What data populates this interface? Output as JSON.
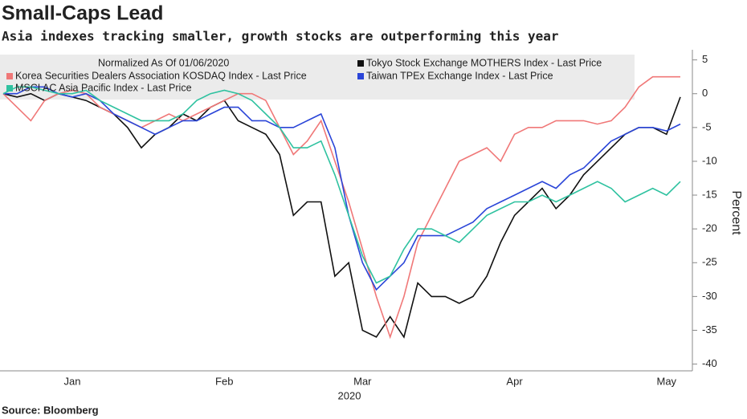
{
  "chart_data": {
    "type": "line",
    "title": "Small-Caps Lead",
    "subtitle": "Asia indexes tracking smaller, growth stocks are outperforming this year",
    "legend_title": "Normalized As Of 01/06/2020",
    "y_label": "Percent",
    "x_label": "2020",
    "source": "Source: Bloomberg",
    "categories": [
      null,
      null,
      null,
      null,
      null,
      "Jan",
      null,
      null,
      null,
      null,
      null,
      null,
      null,
      null,
      null,
      null,
      "Feb",
      null,
      null,
      null,
      null,
      null,
      null,
      null,
      null,
      null,
      "Mar",
      null,
      null,
      null,
      null,
      null,
      null,
      null,
      null,
      null,
      null,
      "Apr",
      null,
      null,
      null,
      null,
      null,
      null,
      null,
      null,
      null,
      null,
      "May",
      null
    ],
    "series": [
      {
        "name": "Tokyo Stock Exchange MOTHERS Index - Last Price",
        "color": "#111111",
        "values": [
          0,
          -0.5,
          0,
          -1,
          0,
          -0.5,
          -1,
          -2,
          -3,
          -5,
          -8,
          -6,
          -5,
          -3,
          -4,
          -2,
          -1,
          -4,
          -5,
          -6,
          -9,
          -18,
          -16,
          -16,
          -27,
          -25,
          -35,
          -36,
          -33,
          -36,
          -28,
          -30,
          -30,
          -31,
          -30,
          -27,
          -22,
          -18,
          -16,
          -14,
          -17,
          -15,
          -12,
          -10,
          -8,
          -6,
          -5,
          -5,
          -6,
          -0.5
        ]
      },
      {
        "name": "Korea Securities Dealers Association KOSDAQ Index - Last Price",
        "color": "#f07878",
        "values": [
          0,
          -2,
          -4,
          -1,
          0,
          0.5,
          0,
          -2,
          -3,
          -4,
          -5,
          -4,
          -3,
          -4,
          -3,
          -2,
          -1,
          0,
          0,
          -1,
          -5,
          -9,
          -7,
          -4,
          -10,
          -16,
          -23,
          -30,
          -36,
          -30,
          -22,
          -18,
          -14,
          -10,
          -9,
          -8,
          -10,
          -6,
          -5,
          -5,
          -4,
          -4,
          -4,
          -4.5,
          -4,
          -2,
          1,
          2.5,
          2.5,
          2.5
        ]
      },
      {
        "name": "Taiwan TPEx Exchange Index - Last Price",
        "color": "#2a45d8",
        "values": [
          0,
          0,
          1,
          1,
          0,
          -0.5,
          0,
          -1,
          -3,
          -4,
          -5,
          -6,
          -5,
          -4,
          -4,
          -3,
          -2,
          -2,
          -4,
          -4,
          -5,
          -5,
          -4,
          -3,
          -8,
          -18,
          -25,
          -29,
          -27,
          -25,
          -21,
          -21,
          -21,
          -20,
          -19,
          -17,
          -16,
          -15,
          -14,
          -13,
          -14,
          -12,
          -11,
          -9,
          -7,
          -6,
          -5,
          -5,
          -5.5,
          -4.5
        ]
      },
      {
        "name": "MSCI AC Asia Pacific Index - Last Price",
        "color": "#2fc2a0",
        "values": [
          0,
          1,
          1,
          0.5,
          0,
          0,
          0.5,
          -1,
          -2,
          -3,
          -4,
          -4,
          -4,
          -3,
          -1,
          0,
          0.5,
          0,
          -1,
          -3,
          -5,
          -8,
          -8,
          -7,
          -12,
          -18,
          -24,
          -28,
          -27,
          -23,
          -20,
          -20,
          -21,
          -22,
          -20,
          -18,
          -17,
          -16,
          -16,
          -15,
          -16,
          -15,
          -14,
          -13,
          -14,
          -16,
          -15,
          -14,
          -15,
          -13
        ]
      }
    ],
    "ylim": [
      -41,
      6.5
    ],
    "yticks": [
      5,
      0,
      -5,
      -10,
      -15,
      -20,
      -25,
      -30,
      -35,
      -40
    ]
  }
}
